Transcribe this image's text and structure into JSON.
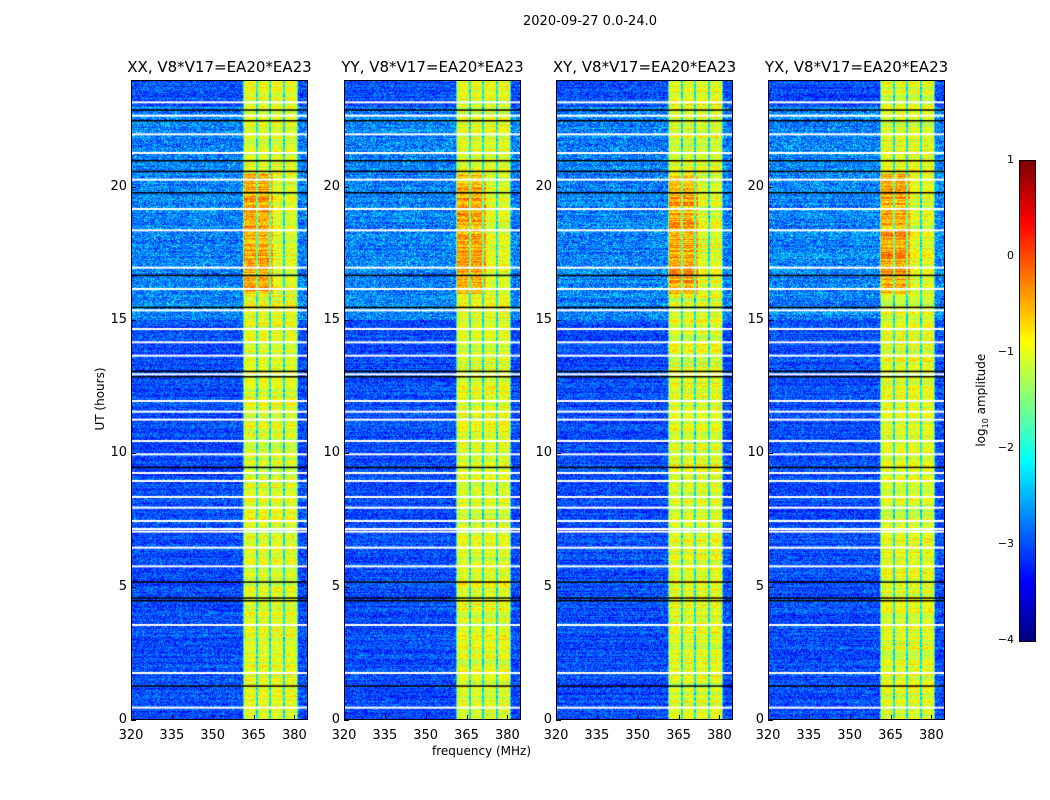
{
  "chart_data": {
    "type": "heatmap",
    "title": "2020-09-27 0.0-24.0",
    "xlabel": "frequency (MHz)",
    "ylabel": "UT (hours)",
    "xlim": [
      320,
      385
    ],
    "ylim": [
      0,
      24
    ],
    "xticks": [
      "320",
      "335",
      "350",
      "365",
      "380"
    ],
    "yticks": [
      "0",
      "5",
      "10",
      "15",
      "20"
    ],
    "panels": [
      {
        "title": "XX, V8*V17=EA20*EA23"
      },
      {
        "title": "YY, V8*V17=EA20*EA23"
      },
      {
        "title": "XY, V8*V17=EA20*EA23"
      },
      {
        "title": "YX, V8*V17=EA20*EA23"
      }
    ],
    "colorbar": {
      "label_main": "log",
      "label_sub": "10",
      "label_rest": " amplitude",
      "range": [
        -4,
        1
      ],
      "ticks": [
        "1",
        "0",
        "−1",
        "−2",
        "−3",
        "−4"
      ],
      "colormap": "jet"
    },
    "background_log_amplitude": -3.0,
    "rfi_band_mhz": [
      361,
      381
    ],
    "rfi_band_log_amplitude": -1.0,
    "rfi_subband_edges_mhz": [
      361,
      366,
      371,
      376,
      381
    ],
    "hot_period_ut": [
      16,
      20.5
    ],
    "flagged_white_rows_ut": [
      0.5,
      1.8,
      3.6,
      5.8,
      6.5,
      7.1,
      7.2,
      7.5,
      8.0,
      8.4,
      9.0,
      9.3,
      10.0,
      10.5,
      11.3,
      11.6,
      12.0,
      13.0,
      13.7,
      14.2,
      14.7,
      15.4,
      16.2,
      17.0,
      18.4,
      19.2,
      20.3,
      21.3,
      22.0,
      22.7,
      23.2
    ],
    "black_rows_ut": [
      1.3,
      4.5,
      4.6,
      5.2,
      9.5,
      12.9,
      13.1,
      15.5,
      16.7,
      19.8,
      20.6,
      21.0,
      22.5,
      22.9
    ]
  }
}
